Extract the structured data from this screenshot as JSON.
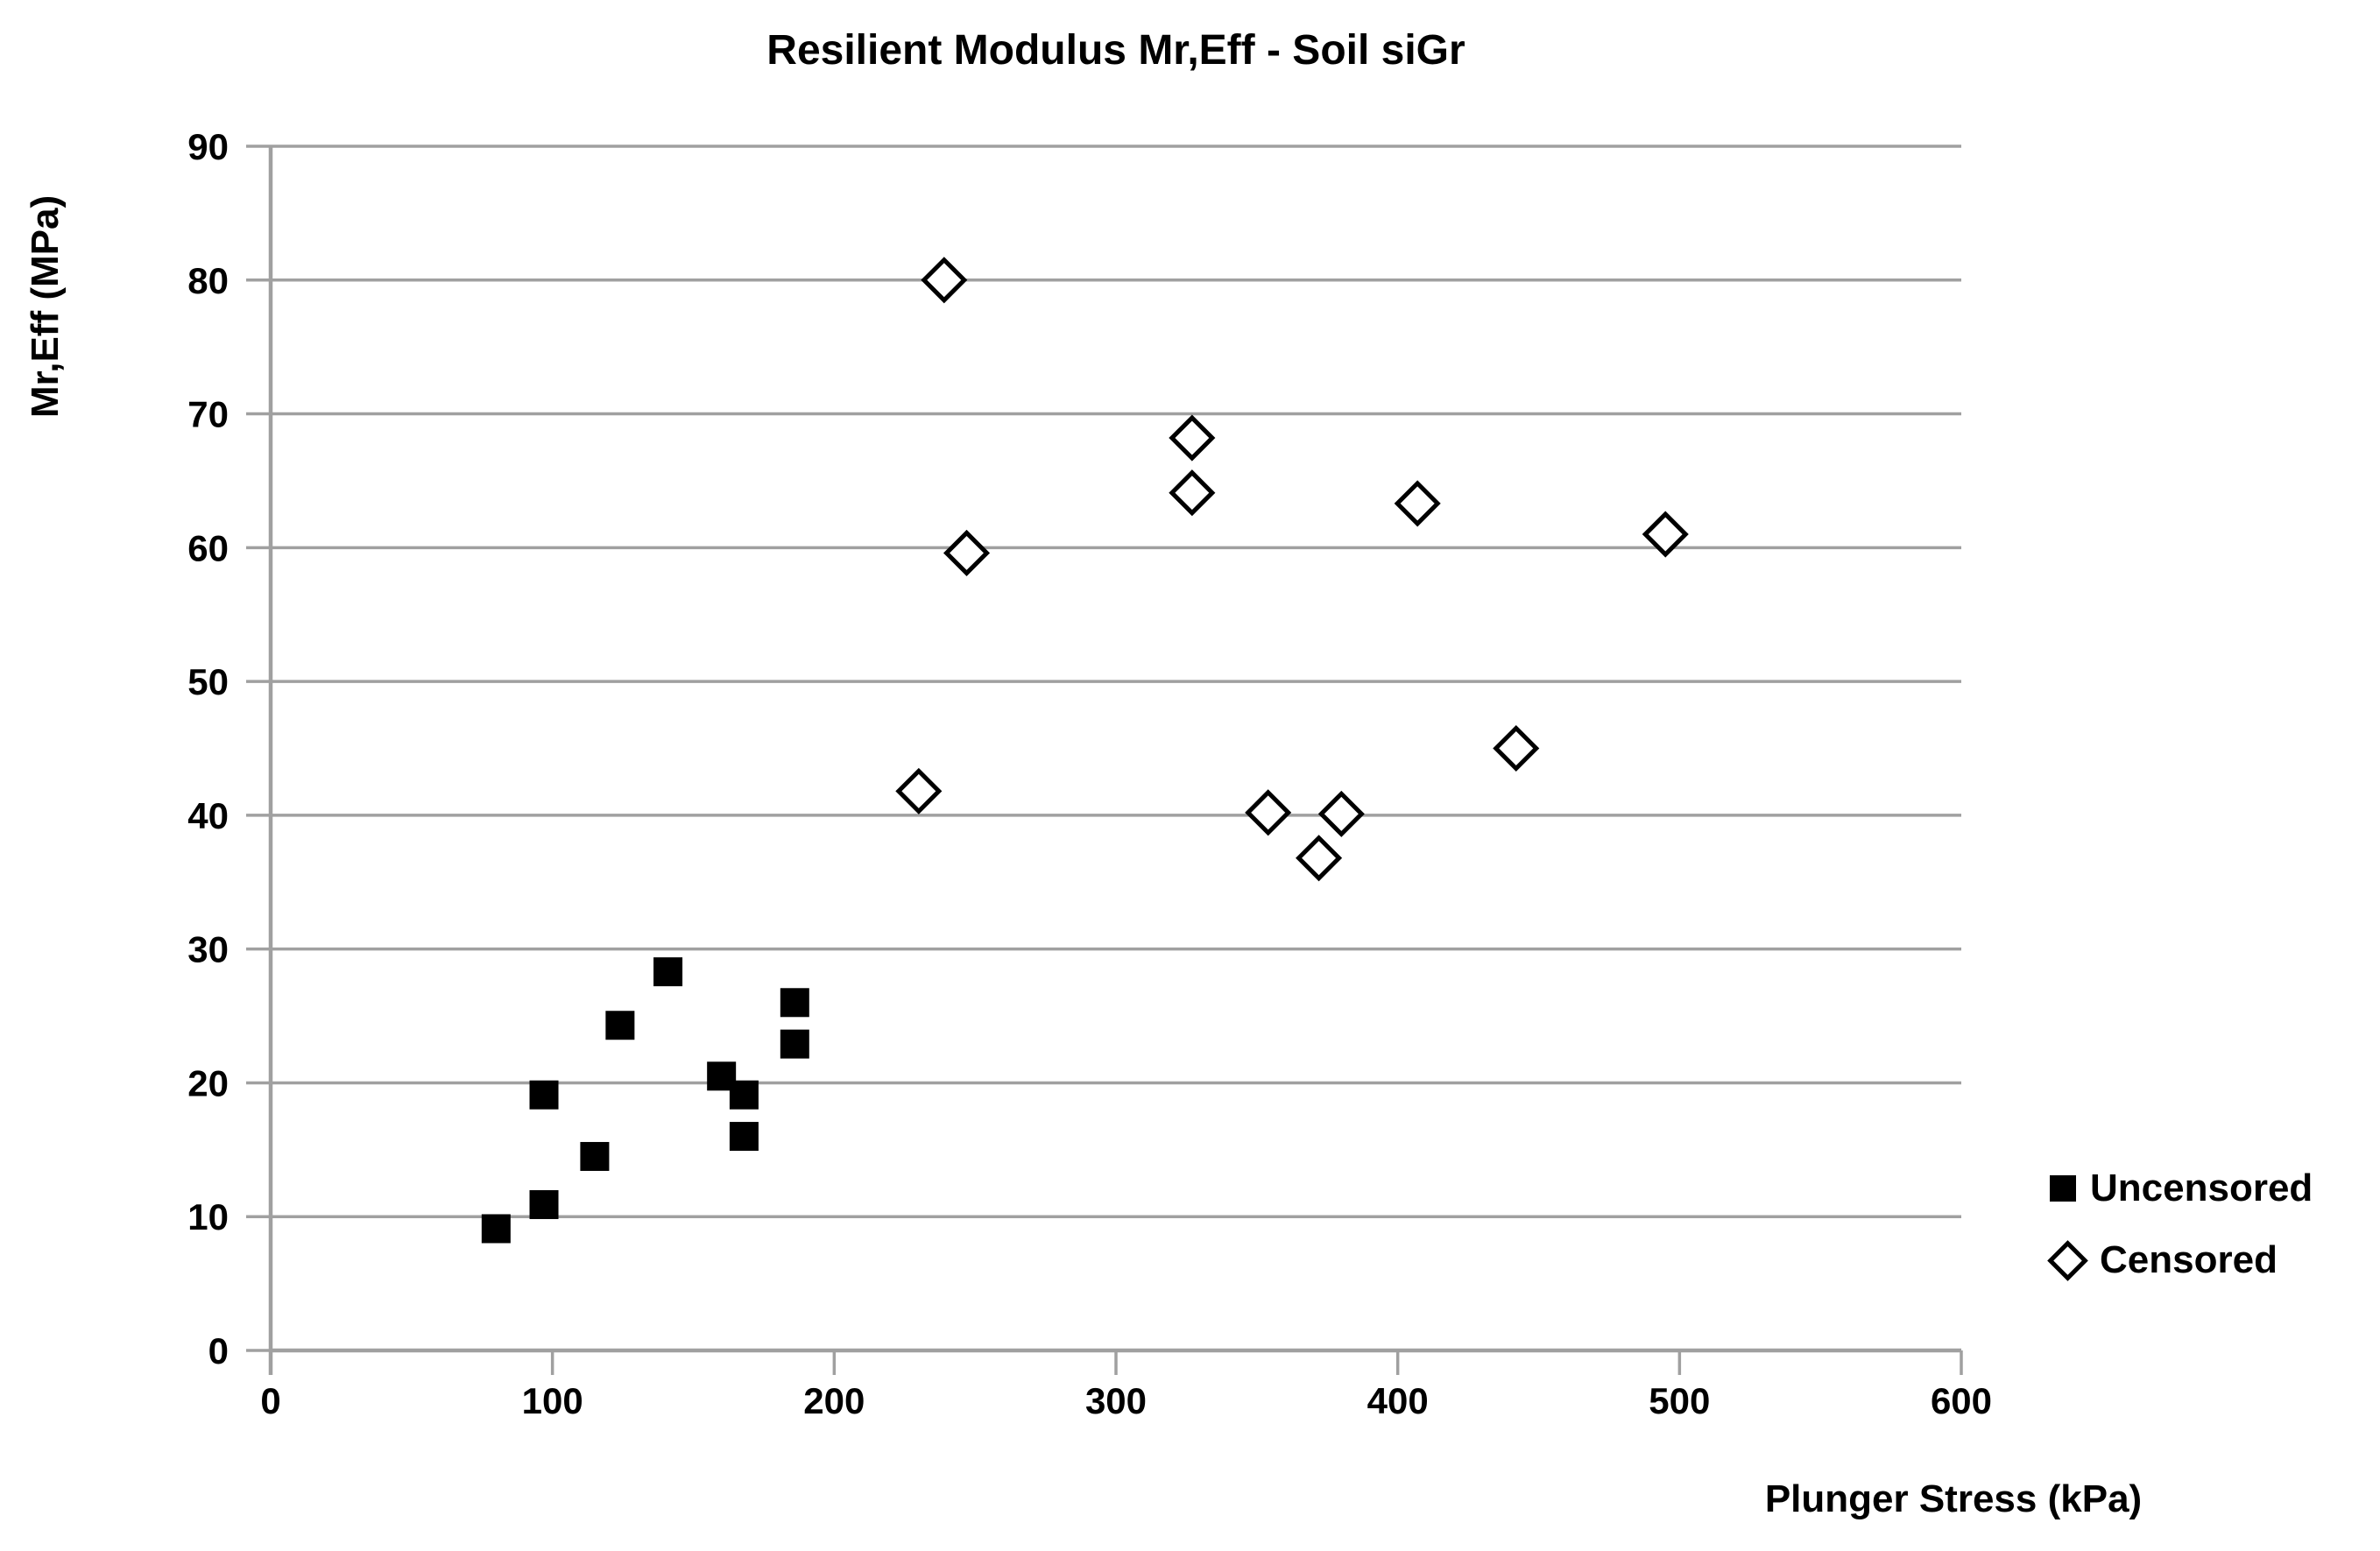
{
  "title": "Resilient Modulus Mr,Eff - Soil siGr",
  "colors": {
    "marker": "#000000",
    "gridline": "#a0a0a0",
    "axis": "#a0a0a0",
    "background": "#ffffff",
    "text": "#000000"
  },
  "legend": {
    "items": [
      {
        "label": "Uncensored",
        "marker": "filled-square"
      },
      {
        "label": "Censored",
        "marker": "open-diamond"
      }
    ]
  },
  "chart_data": {
    "type": "scatter",
    "title": "Resilient Modulus Mr,Eff - Soil siGr",
    "xlabel": "Plunger Stress (kPa)",
    "ylabel": "Mr,Eff (MPa)",
    "xlim": [
      0,
      600
    ],
    "ylim": [
      0,
      90
    ],
    "x_ticks": [
      0,
      100,
      200,
      300,
      400,
      500,
      600
    ],
    "y_ticks": [
      0,
      10,
      20,
      30,
      40,
      50,
      60,
      70,
      80,
      90
    ],
    "grid": "horizontal-only",
    "legend_position": "right",
    "point_format": [
      "x_kPa",
      "y_MPa"
    ],
    "series": [
      {
        "name": "Uncensored",
        "marker": "filled-square",
        "points": [
          [
            80,
            9.1
          ],
          [
            97,
            10.9
          ],
          [
            97,
            19.1
          ],
          [
            115,
            14.5
          ],
          [
            124,
            24.3
          ],
          [
            141,
            28.3
          ],
          [
            160,
            20.5
          ],
          [
            168,
            16.0
          ],
          [
            168,
            19.1
          ],
          [
            186,
            22.9
          ],
          [
            186,
            26.0
          ]
        ]
      },
      {
        "name": "Censored",
        "marker": "open-diamond",
        "points": [
          [
            230,
            41.8
          ],
          [
            239,
            80.0
          ],
          [
            247,
            59.6
          ],
          [
            327,
            64.1
          ],
          [
            327,
            68.2
          ],
          [
            354,
            40.2
          ],
          [
            372,
            36.8
          ],
          [
            380,
            40.1
          ],
          [
            407,
            63.3
          ],
          [
            442,
            45.0
          ],
          [
            495,
            61.0
          ]
        ]
      }
    ]
  }
}
